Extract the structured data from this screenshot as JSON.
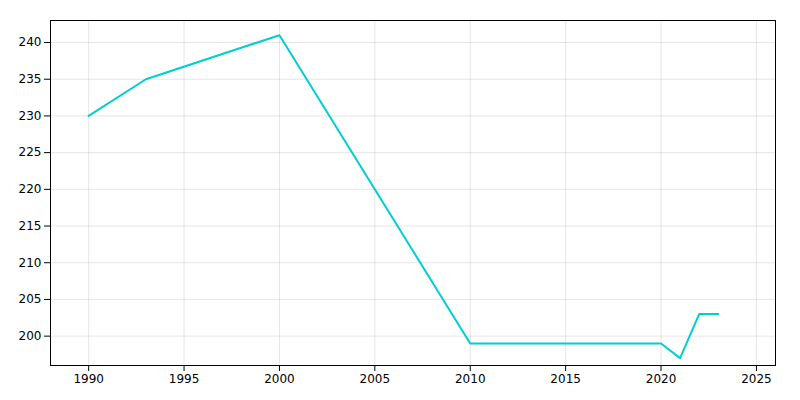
{
  "chart_data": {
    "type": "line",
    "x": [
      1990,
      1993,
      2000,
      2010,
      2015,
      2020,
      2021,
      2022,
      2023
    ],
    "values": [
      230,
      235,
      241,
      199,
      199,
      199,
      197,
      203,
      203
    ],
    "color": "#00CED1",
    "xlim": [
      1988,
      2026
    ],
    "ylim": [
      196,
      243
    ],
    "xticks": [
      1990,
      1995,
      2000,
      2005,
      2010,
      2015,
      2020,
      2025
    ],
    "yticks": [
      200,
      205,
      210,
      215,
      220,
      225,
      230,
      235,
      240
    ],
    "grid": true
  }
}
